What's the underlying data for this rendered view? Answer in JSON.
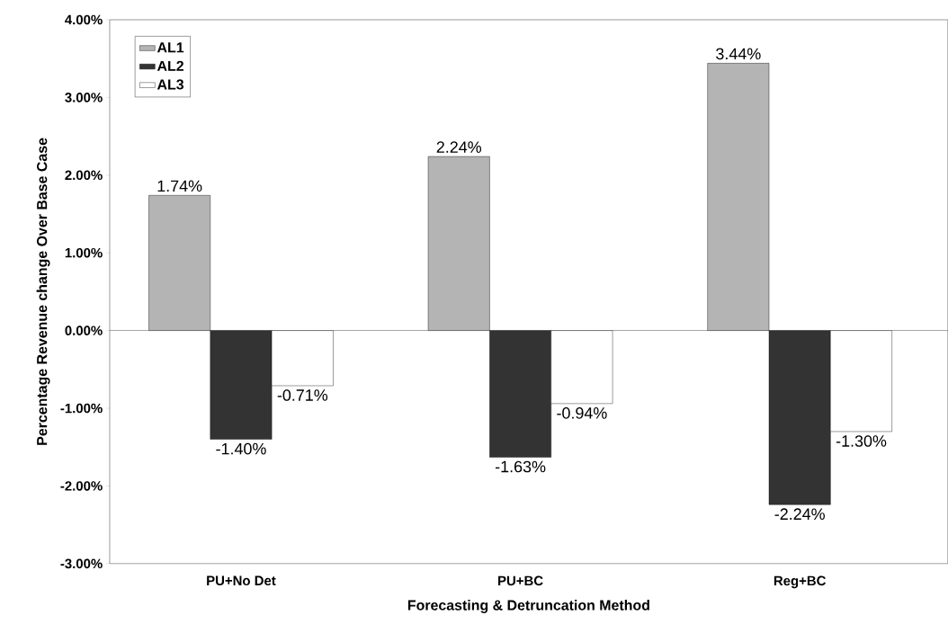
{
  "chart_data": {
    "type": "bar",
    "xlabel": "Forecasting & Detruncation Method",
    "ylabel": "Percentage Revenue change Over Base Case",
    "categories": [
      "PU+No Det",
      "PU+BC",
      "Reg+BC"
    ],
    "series": [
      {
        "name": "AL1",
        "color": "#b4b4b4",
        "values": [
          1.74,
          2.24,
          3.44
        ],
        "value_labels": [
          "1.74%",
          "2.24%",
          "3.44%"
        ]
      },
      {
        "name": "AL2",
        "color": "#333333",
        "values": [
          -1.4,
          -1.63,
          -2.24
        ],
        "value_labels": [
          "-1.40%",
          "-1.63%",
          "-2.24%"
        ]
      },
      {
        "name": "AL3",
        "color": "#ffffff",
        "values": [
          -0.71,
          -0.94,
          -1.3
        ],
        "value_labels": [
          "-0.71%",
          "-0.94%",
          "-1.30%"
        ]
      }
    ],
    "ylim": [
      -3,
      4
    ],
    "yticks": [
      {
        "value": -3,
        "label": "-3.00%"
      },
      {
        "value": -2,
        "label": "-2.00%"
      },
      {
        "value": -1,
        "label": "-1.00%"
      },
      {
        "value": 0,
        "label": "0.00%"
      },
      {
        "value": 1,
        "label": "1.00%"
      },
      {
        "value": 2,
        "label": "2.00%"
      },
      {
        "value": 3,
        "label": "3.00%"
      },
      {
        "value": 4,
        "label": "4.00%"
      }
    ],
    "legend": "top left"
  }
}
